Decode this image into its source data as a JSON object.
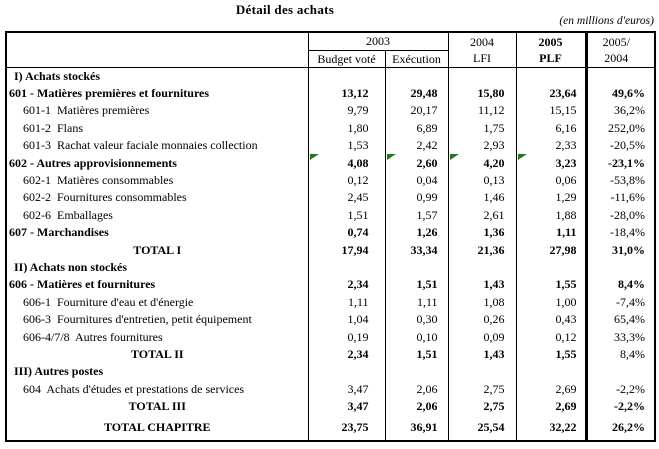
{
  "title": "Détail des achats",
  "unit_note": "(en millions d'euros)",
  "colors": {
    "background": "#ffffff",
    "text": "#000000",
    "border": "#000000",
    "comment_marker_green": "#1e7c1e"
  },
  "table": {
    "header": {
      "group_2003": "2003",
      "sub_budget_vote": "Budget voté",
      "sub_execution": "Exécution",
      "col_2004_line1": "2004",
      "col_2004_line2": "LFI",
      "col_2005_line1": "2005",
      "col_2005_line2": "PLF",
      "col_ratio_line1": "2005/",
      "col_ratio_line2": "2004"
    },
    "rows": [
      {
        "kind": "section",
        "label": "I) Achats stockés",
        "values": [
          "",
          "",
          "",
          "",
          ""
        ],
        "bold_values": false,
        "bold_pct": false
      },
      {
        "kind": "main",
        "label": "601 - Matières premières et fournitures",
        "values": [
          "13,12",
          "29,48",
          "15,80",
          "23,64",
          "49,6%"
        ],
        "bold_values": true,
        "bold_pct": true
      },
      {
        "kind": "sub",
        "label": "601-1  Matières premières",
        "values": [
          "9,79",
          "20,17",
          "11,12",
          "15,15",
          "36,2%"
        ],
        "bold_values": false,
        "bold_pct": false
      },
      {
        "kind": "sub",
        "label": "601-2  Flans",
        "values": [
          "1,80",
          "6,89",
          "1,75",
          "6,16",
          "252,0%"
        ],
        "bold_values": false,
        "bold_pct": false
      },
      {
        "kind": "sub",
        "label": "601-3  Rachat valeur faciale monnaies collection",
        "values": [
          "1,53",
          "2,42",
          "2,93",
          "2,33",
          "-20,5%"
        ],
        "bold_values": false,
        "bold_pct": false
      },
      {
        "kind": "main",
        "label": "602 - Autres approvisionnements",
        "values": [
          "4,08",
          "2,60",
          "4,20",
          "3,23",
          "-23,1%"
        ],
        "bold_values": true,
        "bold_pct": true,
        "markers": true
      },
      {
        "kind": "sub",
        "label": "602-1  Matières consommables",
        "values": [
          "0,12",
          "0,04",
          "0,13",
          "0,06",
          "-53,8%"
        ],
        "bold_values": false,
        "bold_pct": false
      },
      {
        "kind": "sub",
        "label": "602-2  Fournitures consommables",
        "values": [
          "2,45",
          "0,99",
          "1,46",
          "1,29",
          "-11,6%"
        ],
        "bold_values": false,
        "bold_pct": false
      },
      {
        "kind": "sub",
        "label": "602-6  Emballages",
        "values": [
          "1,51",
          "1,57",
          "2,61",
          "1,88",
          "-28,0%"
        ],
        "bold_values": false,
        "bold_pct": false
      },
      {
        "kind": "main",
        "label": "607 - Marchandises",
        "values": [
          "0,74",
          "1,26",
          "1,36",
          "1,11",
          "-18,4%"
        ],
        "bold_values": true,
        "bold_pct": false
      },
      {
        "kind": "total",
        "label": "TOTAL I",
        "values": [
          "17,94",
          "33,34",
          "21,36",
          "27,98",
          "31,0%"
        ],
        "bold_values": true,
        "bold_pct": true
      },
      {
        "kind": "section",
        "label": "II) Achats non stockés",
        "values": [
          "",
          "",
          "",
          "",
          ""
        ],
        "bold_values": false,
        "bold_pct": false
      },
      {
        "kind": "main",
        "label": "606 - Matières et fournitures",
        "values": [
          "2,34",
          "1,51",
          "1,43",
          "1,55",
          "8,4%"
        ],
        "bold_values": true,
        "bold_pct": true
      },
      {
        "kind": "sub",
        "label": "606-1  Fourniture d'eau et d'énergie",
        "values": [
          "1,11",
          "1,11",
          "1,08",
          "1,00",
          "-7,4%"
        ],
        "bold_values": false,
        "bold_pct": false
      },
      {
        "kind": "sub",
        "label": "606-3  Fournitures d'entretien, petit équipement",
        "values": [
          "1,04",
          "0,30",
          "0,26",
          "0,43",
          "65,4%"
        ],
        "bold_values": false,
        "bold_pct": false
      },
      {
        "kind": "sub",
        "label": "606-4/7/8  Autres fournitures",
        "values": [
          "0,19",
          "0,10",
          "0,09",
          "0,12",
          "33,3%"
        ],
        "bold_values": false,
        "bold_pct": false
      },
      {
        "kind": "total",
        "label": "TOTAL II",
        "values": [
          "2,34",
          "1,51",
          "1,43",
          "1,55",
          "8,4%"
        ],
        "bold_values": true,
        "bold_pct": false
      },
      {
        "kind": "section",
        "label": "III) Autres postes",
        "values": [
          "",
          "",
          "",
          "",
          ""
        ],
        "bold_values": false,
        "bold_pct": false
      },
      {
        "kind": "sub",
        "label": "604  Achats d'études et prestations de services",
        "values": [
          "3,47",
          "2,06",
          "2,75",
          "2,69",
          "-2,2%"
        ],
        "bold_values": false,
        "bold_pct": false
      },
      {
        "kind": "total",
        "label": "TOTAL III",
        "values": [
          "3,47",
          "2,06",
          "2,75",
          "2,69",
          "-2,2%"
        ],
        "bold_values": true,
        "bold_pct": true
      },
      {
        "kind": "total",
        "label": "TOTAL CHAPITRE",
        "values": [
          "23,75",
          "36,91",
          "25,54",
          "32,22",
          "26,2%"
        ],
        "bold_values": true,
        "bold_pct": true,
        "tall": true
      }
    ]
  }
}
